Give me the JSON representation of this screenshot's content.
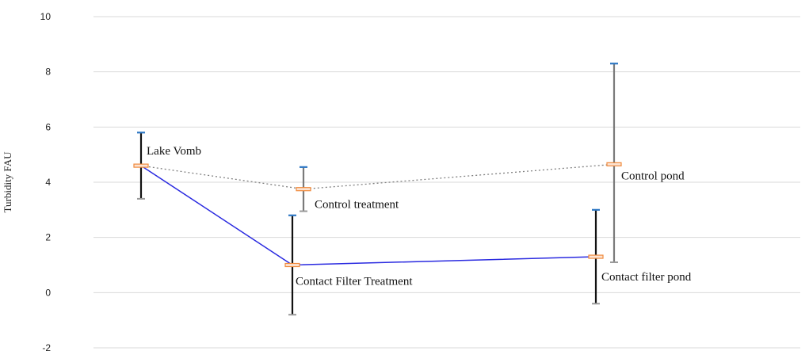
{
  "chart_data": {
    "type": "line",
    "ylabel": "Turbidity FAU",
    "xlabel": "",
    "title": "",
    "ylim": [
      -2,
      10
    ],
    "yticks": [
      -2,
      0,
      2,
      4,
      6,
      8,
      10
    ],
    "grid": true,
    "points": [
      {
        "label": "Lake Vomb",
        "value": 4.6,
        "err_low": 3.4,
        "err_high": 5.8
      },
      {
        "label": "Contact Filter Treatment",
        "value": 1.0,
        "err_low": -0.8,
        "err_high": 2.8
      },
      {
        "label": "Contact filter pond",
        "value": 1.3,
        "err_low": -0.4,
        "err_high": 3.0
      },
      {
        "label": "Control treatment",
        "value": 3.75,
        "err_low": 2.95,
        "err_high": 4.55
      },
      {
        "label": "Control pond",
        "value": 4.65,
        "err_low": 1.1,
        "err_high": 8.3
      }
    ],
    "series": [
      {
        "style": "solid",
        "color": "#2a2ae0",
        "points": [
          "Lake Vomb",
          "Contact Filter Treatment",
          "Contact filter pond"
        ]
      },
      {
        "style": "dotted",
        "color": "#808080",
        "points": [
          "Lake Vomb",
          "Control treatment",
          "Control pond"
        ]
      }
    ],
    "colors": {
      "marker": "#f08a3c",
      "cap_top": "#2f78c4",
      "cap_bottom": "#9a9a9a",
      "err_dark": "#111111",
      "err_grey": "#7a7a7a",
      "grid": "#d9d9d9"
    }
  }
}
